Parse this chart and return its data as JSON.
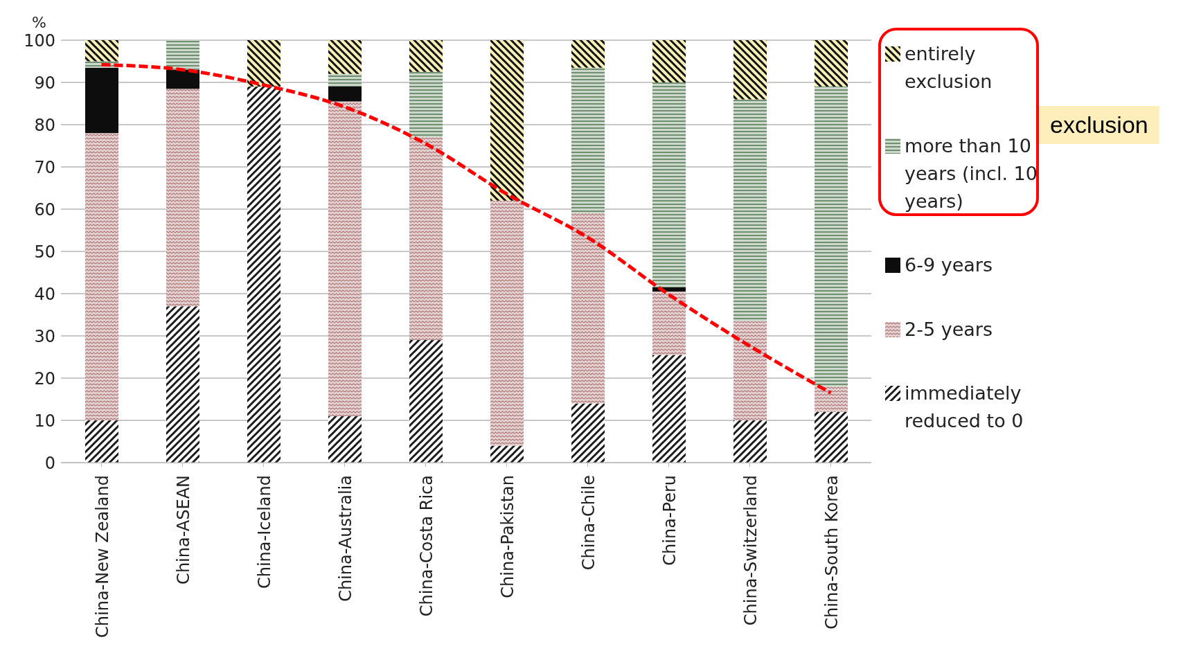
{
  "chart_data": {
    "type": "bar",
    "stacked": true,
    "ylabel": "%",
    "categories": [
      "China-New Zealand",
      "China-ASEAN",
      "China-Iceland",
      "China-Australia",
      "China-Costa Rica",
      "China-Pakistan",
      "China-Chile",
      "China-Peru",
      "China-Switzerland",
      "China-South Korea"
    ],
    "series": [
      {
        "name": "immediately reduced to 0",
        "color": "#1a1a1a",
        "values": [
          10,
          37,
          89,
          11,
          29,
          4,
          14,
          25.5,
          10,
          12
        ]
      },
      {
        "name": "2-5 years",
        "color": "#b07a7a",
        "values": [
          68,
          51.5,
          0,
          74.5,
          48,
          58,
          45,
          15,
          23.5,
          6
        ]
      },
      {
        "name": "6-9 years",
        "color": "#0d0d0d",
        "values": [
          15.5,
          4.5,
          0,
          3.5,
          0,
          0,
          0,
          1,
          0,
          0
        ]
      },
      {
        "name": "more than 10 years (incl. 10 years)",
        "color": "#6f8f6f",
        "values": [
          1.5,
          7,
          0,
          3,
          15.5,
          0,
          34.5,
          48.5,
          52.5,
          71
        ]
      },
      {
        "name": "entirely exclusion",
        "color": "#b8a838",
        "values": [
          5,
          0,
          11,
          8,
          7.5,
          38,
          6.5,
          10,
          14,
          11
        ]
      },
      {
        "type": "line",
        "color": "#ff0000",
        "line_style": "dashed",
        "marker": "none",
        "values": [
          94.2,
          93,
          89.4,
          84.2,
          75.5,
          63.6,
          53.3,
          39.8,
          27.6,
          16.5
        ]
      }
    ],
    "ylim": [
      0,
      100
    ],
    "yticks": [
      0,
      10,
      20,
      30,
      40,
      50,
      60,
      70,
      80,
      90,
      100
    ],
    "grid": "y",
    "legend": "right",
    "annotations": [
      "exclusion"
    ]
  }
}
